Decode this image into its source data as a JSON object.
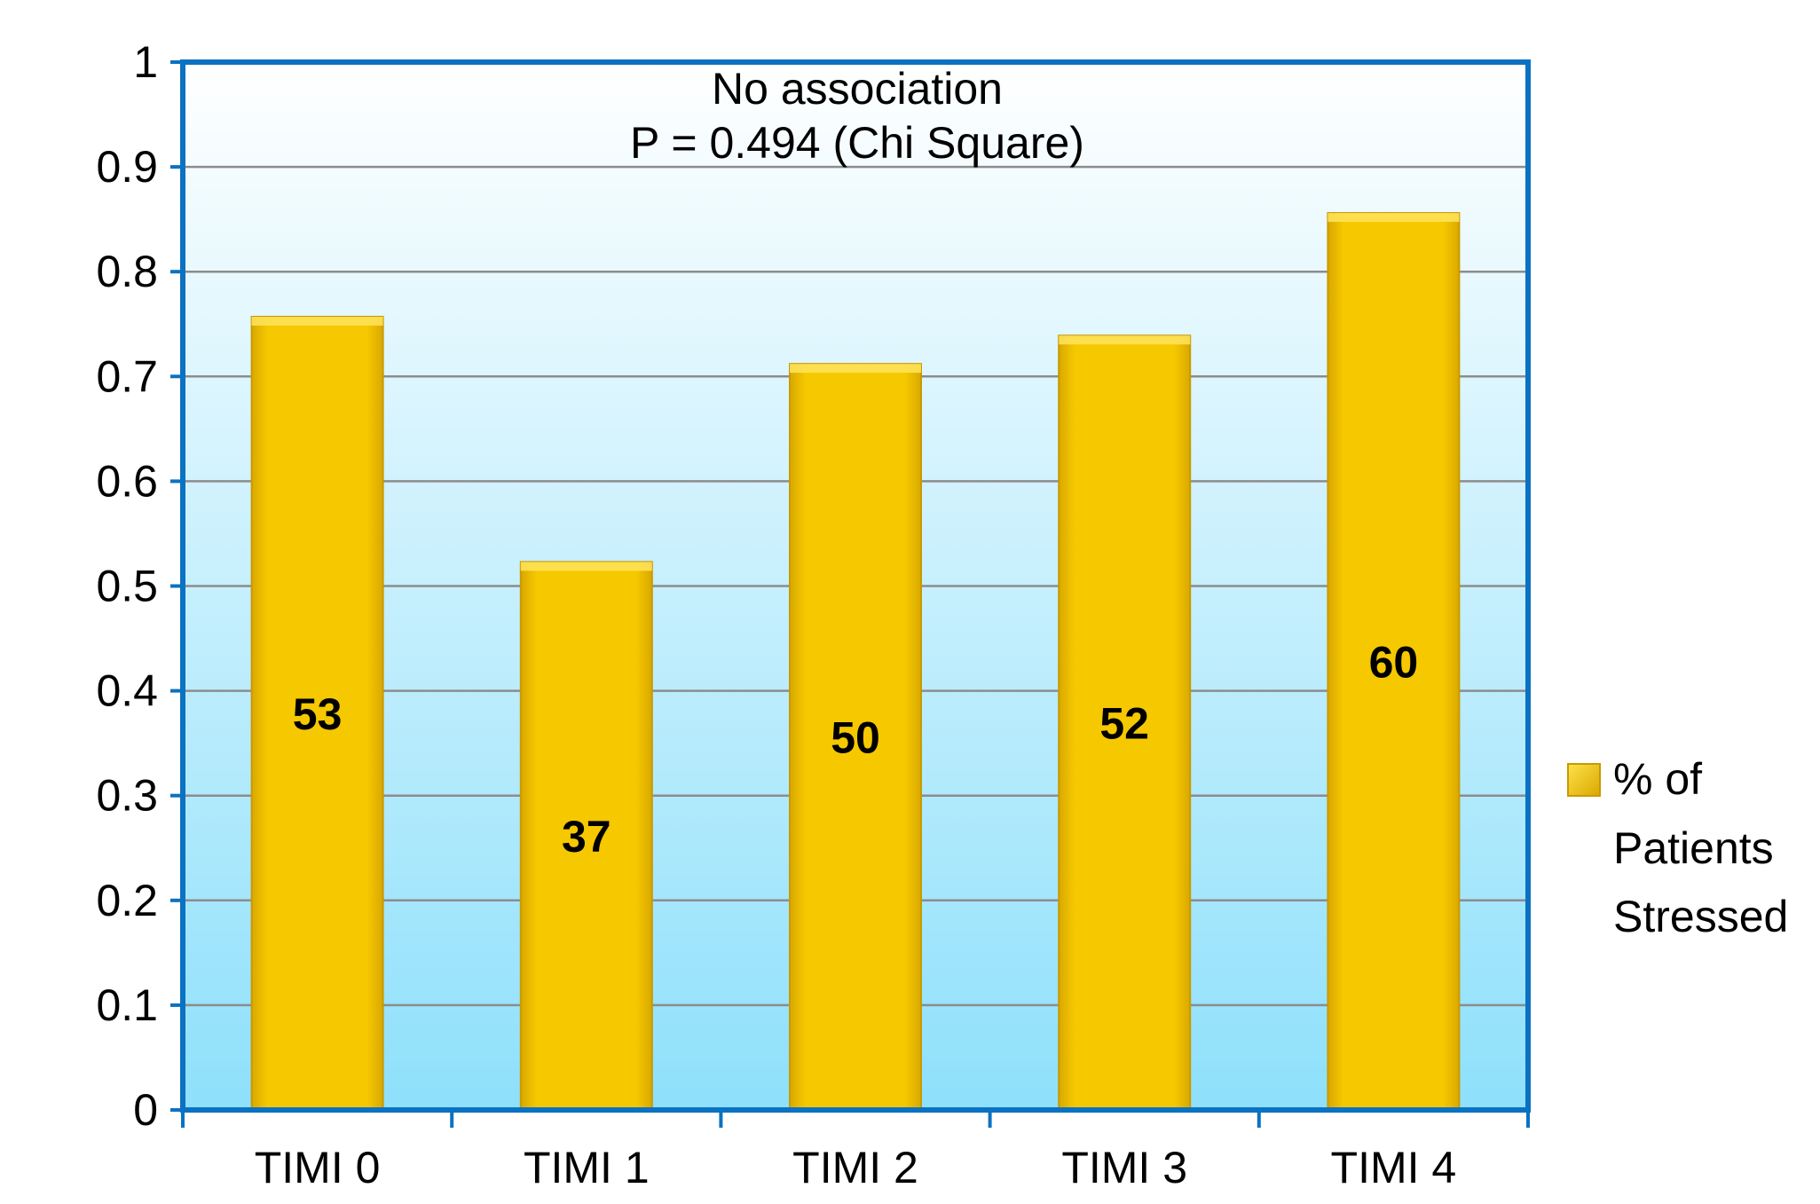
{
  "chart_data": {
    "type": "bar",
    "categories": [
      "TIMI 0",
      "TIMI 1",
      "TIMI 2",
      "TIMI 3",
      "TIMI 4"
    ],
    "series": [
      {
        "name": "% of Patients Stressed",
        "values": [
          0.757,
          0.523,
          0.712,
          0.739,
          0.856
        ],
        "data_labels": [
          "53",
          "37",
          "50",
          "52",
          "60"
        ],
        "color": "#F5C800"
      }
    ],
    "ylim": [
      0,
      1
    ],
    "yticks": [
      "0",
      "0.1",
      "0.2",
      "0.3",
      "0.4",
      "0.5",
      "0.6",
      "0.7",
      "0.8",
      "0.9",
      "1"
    ],
    "annotations": [
      "No association",
      "P = 0.494  (Chi Square)"
    ],
    "legend": {
      "placement": "right",
      "lines": [
        "% of",
        "Patients",
        "Stressed"
      ]
    },
    "grid": true,
    "colors": {
      "frame": "#0B72C2",
      "gridline": "#8C8C8C",
      "bar": "#F5C800",
      "bar_edge": "#C89A00",
      "background_top": "#FFFFFF",
      "background_bottom": "#8EE0FB"
    }
  }
}
